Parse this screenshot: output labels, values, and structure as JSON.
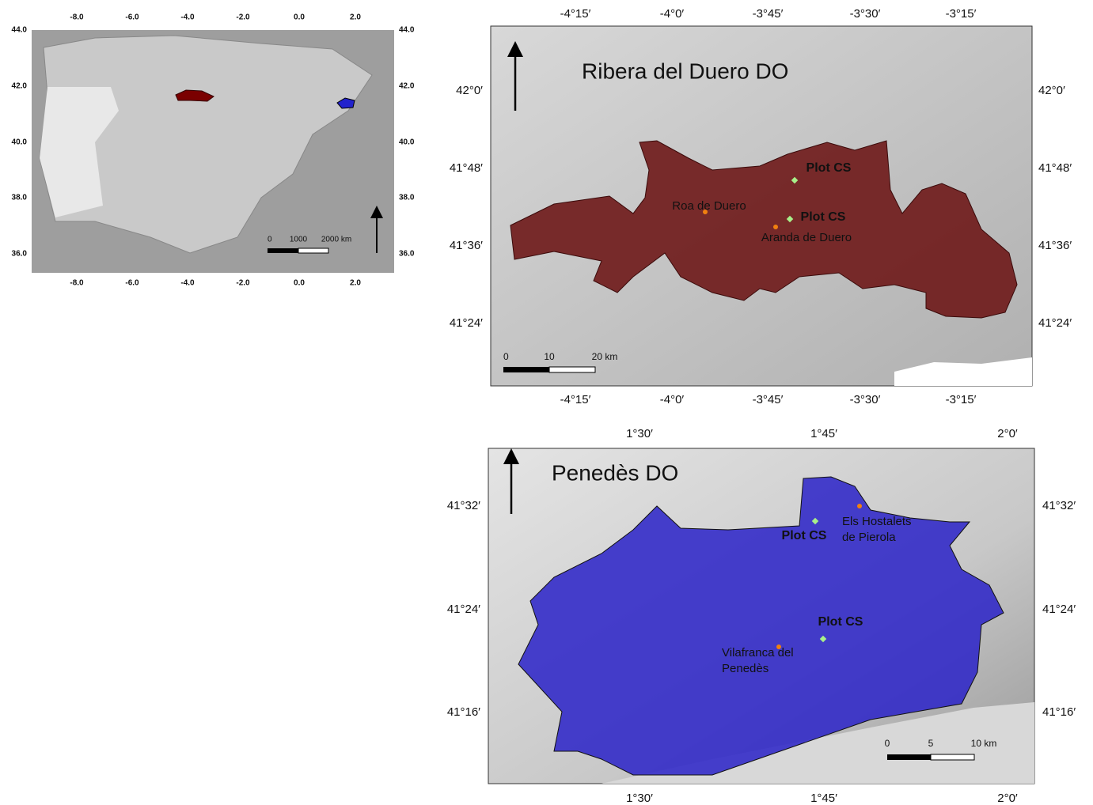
{
  "overview": {
    "x_ticks": [
      "-8.0",
      "-6.0",
      "-4.0",
      "-2.0",
      "0.0",
      "2.0"
    ],
    "y_ticks": [
      "44.0",
      "42.0",
      "40.0",
      "38.0",
      "36.0"
    ],
    "scale": [
      "0",
      "1000",
      "2000 km"
    ]
  },
  "ribera": {
    "title": "Ribera del Duero DO",
    "x_ticks": [
      "-4°15′",
      "-4°0′",
      "-3°45′",
      "-3°30′",
      "-3°15′"
    ],
    "y_ticks": [
      "42°0′",
      "41°48′",
      "41°36′",
      "41°24′"
    ],
    "plots": [
      "Plot CS",
      "Plot CS"
    ],
    "towns": [
      {
        "lines": [
          "Roa de Duero"
        ]
      },
      {
        "lines": [
          "Aranda de Duero"
        ]
      }
    ],
    "scale": [
      "0",
      "10",
      "20 km"
    ]
  },
  "penedes": {
    "title": "Penedès DO",
    "x_ticks": [
      "1°30′",
      "1°45′",
      "2°0′"
    ],
    "y_ticks": [
      "41°32′",
      "41°24′",
      "41°16′"
    ],
    "plots": [
      "Plot CS",
      "Plot CS"
    ],
    "towns": [
      {
        "lines": [
          "Els Hostalets",
          "de Pierola"
        ]
      },
      {
        "lines": [
          "Vilafranca del",
          "Penedès"
        ]
      }
    ],
    "scale": [
      "0",
      "5",
      "10 km"
    ]
  }
}
